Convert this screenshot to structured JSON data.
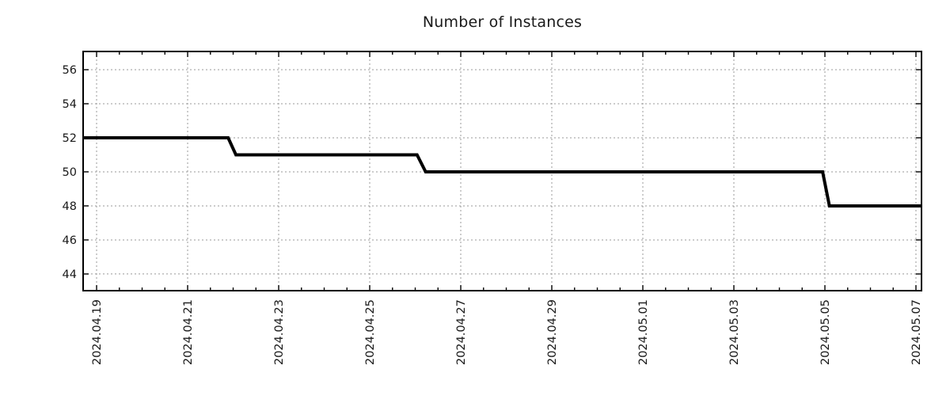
{
  "chart_data": {
    "type": "line",
    "style": "step",
    "title": "Number of Instances",
    "grid": true,
    "legend": "none",
    "colors": {
      "line": "#000000",
      "grid": "#999999",
      "axis": "#000000",
      "text": "#1a1a1a",
      "background": "#ffffff"
    },
    "x_axis": {
      "unit": "date",
      "tick_labels": [
        "2024.04.19",
        "2024.04.21",
        "2024.04.23",
        "2024.04.25",
        "2024.04.27",
        "2024.04.29",
        "2024.05.01",
        "2024.05.03",
        "2024.05.05",
        "2024.05.07"
      ],
      "tick_day_offsets": [
        0,
        2,
        4,
        6,
        8,
        10,
        12,
        14,
        16,
        18
      ],
      "minor_tick_step_days": 0.5,
      "range_day_offsets": [
        -0.296,
        18.122
      ]
    },
    "y_axis": {
      "tick_labels": [
        "44",
        "46",
        "48",
        "50",
        "52",
        "54",
        "56"
      ],
      "tick_values": [
        44,
        46,
        48,
        50,
        52,
        54,
        56
      ],
      "range": [
        43.02,
        57.07
      ]
    },
    "series": [
      {
        "name": "instances",
        "points_day_value": [
          [
            -0.296,
            52
          ],
          [
            2.89,
            52
          ],
          [
            3.06,
            51
          ],
          [
            7.04,
            51
          ],
          [
            7.23,
            50
          ],
          [
            15.95,
            50
          ],
          [
            16.1,
            48
          ],
          [
            18.122,
            48
          ]
        ],
        "events": [
          {
            "date": "2024.04.19",
            "value": 52,
            "note": "series start at left edge"
          },
          {
            "date": "2024.04.22",
            "value": 51,
            "note": "drop 52 to 51"
          },
          {
            "date": "2024.04.26",
            "value": 50,
            "note": "drop 51 to 50"
          },
          {
            "date": "2024.05.05",
            "value": 48,
            "note": "drop 50 to 48"
          },
          {
            "date": "2024.05.07",
            "value": 48,
            "note": "series end at right edge"
          }
        ]
      }
    ]
  }
}
